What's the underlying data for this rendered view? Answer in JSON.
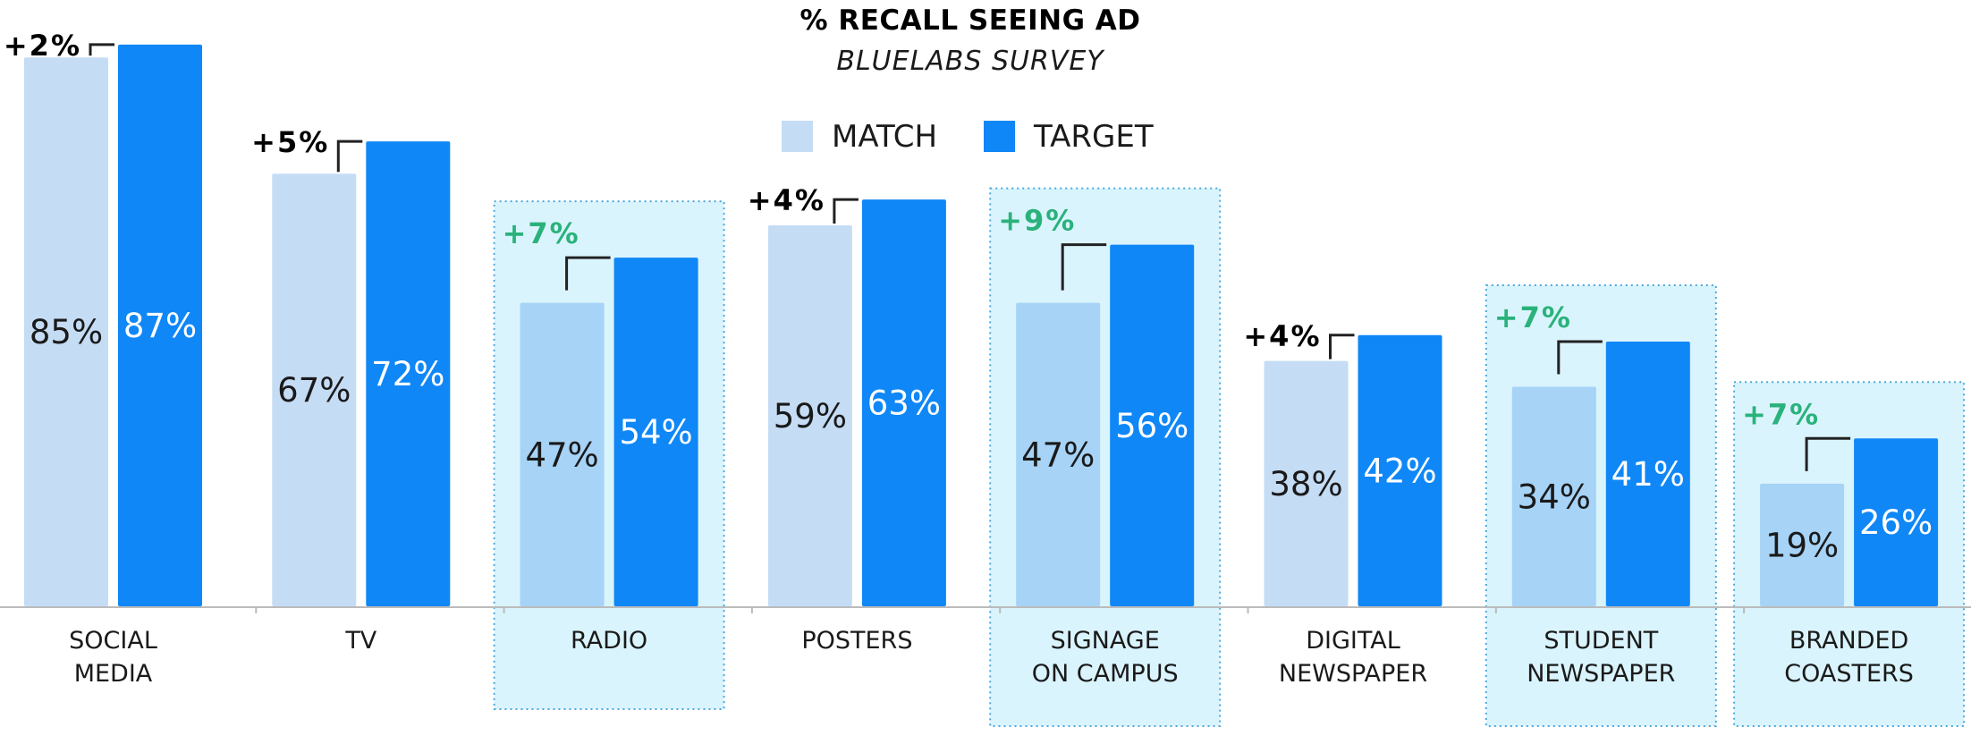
{
  "chart_data": {
    "type": "bar",
    "title": "% RECALL SEEING AD",
    "subtitle": "BLUELABS SURVEY",
    "ylim": [
      0,
      100
    ],
    "grid": false,
    "legend_position": "top-center",
    "series": [
      {
        "name": "MATCH",
        "values": [
          85,
          67,
          47,
          59,
          47,
          38,
          34,
          19
        ]
      },
      {
        "name": "TARGET",
        "values": [
          87,
          72,
          54,
          63,
          56,
          42,
          41,
          26
        ]
      }
    ],
    "categories": [
      [
        "SOCIAL",
        "MEDIA"
      ],
      [
        "TV"
      ],
      [
        "RADIO"
      ],
      [
        "POSTERS"
      ],
      [
        "SIGNAGE",
        "ON CAMPUS"
      ],
      [
        "DIGITAL",
        "NEWSPAPER"
      ],
      [
        "STUDENT",
        "NEWSPAPER"
      ],
      [
        "BRANDED",
        "COASTERS"
      ]
    ],
    "value_labels": {
      "match": [
        "85%",
        "67%",
        "47%",
        "59%",
        "47%",
        "38%",
        "34%",
        "19%"
      ],
      "target": [
        "87%",
        "72%",
        "54%",
        "63%",
        "56%",
        "42%",
        "41%",
        "26%"
      ]
    },
    "differences": [
      "+2%",
      "+5%",
      "+7%",
      "+4%",
      "+9%",
      "+4%",
      "+7%",
      "+7%"
    ],
    "highlighted": [
      false,
      false,
      true,
      false,
      true,
      false,
      true,
      true
    ],
    "colors": {
      "match": "#c5dcf5",
      "match_highlight": "#a6d3f6",
      "target": "#0f87f7",
      "highlight_fill": "#daf4fd",
      "highlight_border": "#4aa8dc",
      "diff_normal": "#000000",
      "diff_highlight": "#2ab27b",
      "value_on_match": "#1a1a1a",
      "value_on_target": "#ffffff",
      "axis": "#bbbbbb"
    }
  }
}
